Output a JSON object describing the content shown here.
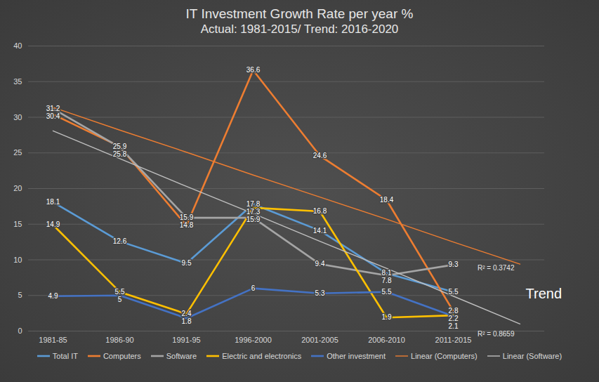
{
  "chart_data": {
    "type": "line",
    "title": "IT Investment Growth Rate per year %",
    "subtitle": "Actual: 1981-2015/ Trend: 2016-2020",
    "categories": [
      "1981-85",
      "1986-90",
      "1991-95",
      "1996-2000",
      "2001-2005",
      "2006-2010",
      "2011-2015",
      null
    ],
    "ylim": [
      0,
      40
    ],
    "yticks": [
      0,
      5,
      10,
      15,
      20,
      25,
      30,
      35,
      40
    ],
    "grid": true,
    "legend": "bottom",
    "data_labels": true,
    "series": [
      {
        "name": "Total IT",
        "color": "#5b9bd5",
        "type": "line",
        "values": [
          18.1,
          12.6,
          9.5,
          17.8,
          14.1,
          8.1,
          5.5,
          null
        ]
      },
      {
        "name": "Computers",
        "color": "#ed7d31",
        "type": "line",
        "values": [
          30.4,
          25.9,
          14.8,
          36.6,
          24.6,
          18.4,
          2.8,
          null
        ]
      },
      {
        "name": "Software",
        "color": "#a5a5a5",
        "type": "line",
        "values": [
          31.2,
          25.8,
          15.9,
          15.9,
          9.4,
          7.8,
          9.3,
          null
        ]
      },
      {
        "name": "Electric and electronics",
        "color": "#ffc000",
        "type": "line",
        "values": [
          14.9,
          5.5,
          2.4,
          17.3,
          16.8,
          1.9,
          2.2,
          null
        ]
      },
      {
        "name": "Other investment",
        "color": "#4472c4",
        "type": "line",
        "values": [
          4.9,
          5,
          1.8,
          6,
          5.3,
          5.5,
          2.1,
          null
        ]
      },
      {
        "name": "Linear (Computers)",
        "color": "#ed7d31",
        "type": "trend",
        "data_labels": false,
        "values": [
          31.4,
          28.2,
          25.1,
          21.9,
          18.8,
          15.7,
          12.5,
          9.4
        ]
      },
      {
        "name": "Linear (Software)",
        "color": "#bfbfbf",
        "type": "trend",
        "data_labels": false,
        "values": [
          28.1,
          24.2,
          20.3,
          16.5,
          12.6,
          8.8,
          4.9,
          1.0
        ]
      }
    ],
    "annotations": [
      {
        "text": "R² = 0.3742",
        "series": "Linear (Computers)"
      },
      {
        "text": "R² = 0.8659",
        "series": "Linear (Software)"
      },
      {
        "text": "Trend"
      }
    ]
  }
}
